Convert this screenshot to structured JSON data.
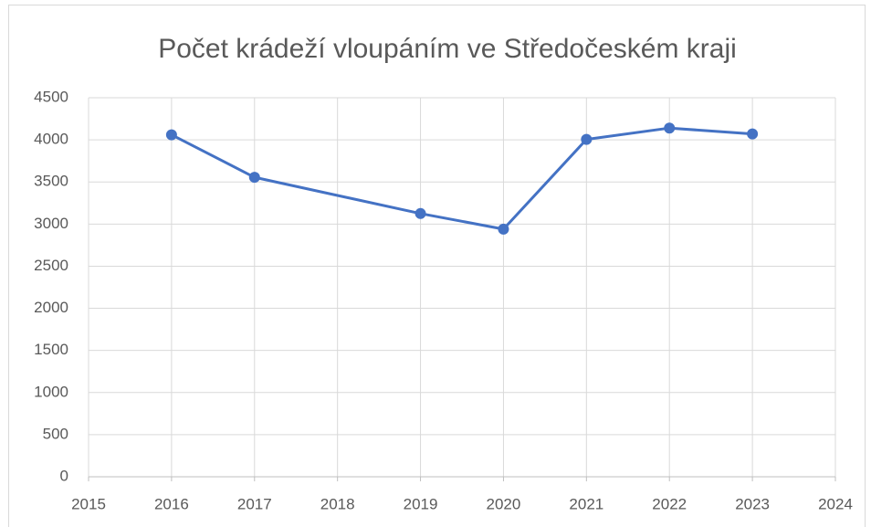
{
  "chart_data": {
    "type": "line",
    "title": "Počet krádeží vloupáním ve Středočeském kraji",
    "x": [
      2016,
      2017,
      2019,
      2020,
      2021,
      2022,
      2023
    ],
    "values": [
      4060,
      3555,
      3125,
      2940,
      4005,
      4140,
      4070
    ],
    "color": "#4472c4",
    "xlim": [
      2015,
      2024
    ],
    "xticks": [
      2015,
      2016,
      2017,
      2018,
      2019,
      2020,
      2021,
      2022,
      2023,
      2024
    ],
    "ylim": [
      0,
      4500
    ],
    "yticks": [
      0,
      500,
      1000,
      1500,
      2000,
      2500,
      3000,
      3500,
      4000,
      4500
    ],
    "grid": true,
    "markers": true
  }
}
